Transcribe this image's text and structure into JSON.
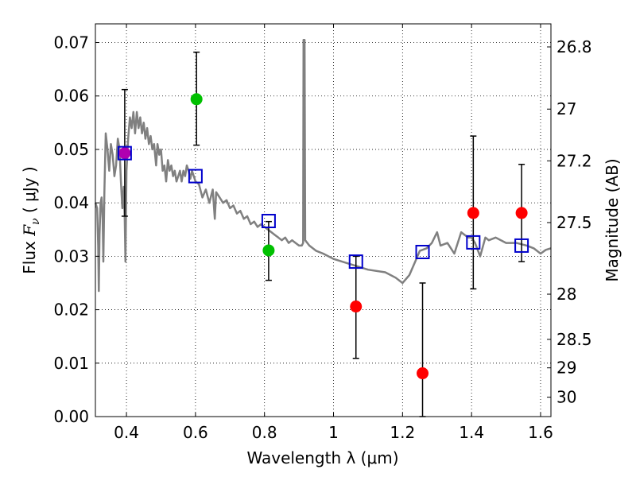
{
  "chart_data": {
    "type": "scatter",
    "xlabel": "Wavelength  λ (μm)",
    "ylabel_prefix": "Flux  ",
    "ylabel_symbol": "F",
    "ylabel_subscript": "ν",
    "ylabel_suffix": "  ( μJy )",
    "y2label": "Magnitude (AB)",
    "xlim": [
      0.31,
      1.63
    ],
    "ylim": [
      0.0,
      0.0735
    ],
    "grid": true,
    "x_ticks": [
      0.4,
      0.6,
      0.8,
      1.0,
      1.2,
      1.4,
      1.6
    ],
    "x_tick_labels": [
      "0.4",
      "0.6",
      "0.8",
      "1",
      "1.2",
      "1.4",
      "1.6"
    ],
    "y_ticks": [
      0.0,
      0.01,
      0.02,
      0.03,
      0.04,
      0.05,
      0.06,
      0.07
    ],
    "y_tick_labels": [
      "0.00",
      "0.01",
      "0.02",
      "0.03",
      "0.04",
      "0.05",
      "0.06",
      "0.07"
    ],
    "mag_ticks": [
      26.8,
      27.0,
      27.2,
      27.5,
      28.0,
      28.5,
      29.0,
      30.0
    ],
    "mag_tick_labels": [
      "26.8",
      "27",
      "27.2",
      "27.5",
      "28",
      "28.5",
      "29",
      "30"
    ],
    "model_spectrum": [
      [
        0.31,
        0.04
      ],
      [
        0.315,
        0.039
      ],
      [
        0.318,
        0.032
      ],
      [
        0.32,
        0.0235
      ],
      [
        0.322,
        0.034
      ],
      [
        0.325,
        0.04
      ],
      [
        0.328,
        0.041
      ],
      [
        0.331,
        0.037
      ],
      [
        0.333,
        0.029
      ],
      [
        0.336,
        0.042
      ],
      [
        0.34,
        0.053
      ],
      [
        0.345,
        0.05
      ],
      [
        0.35,
        0.046
      ],
      [
        0.355,
        0.051
      ],
      [
        0.36,
        0.049
      ],
      [
        0.365,
        0.045
      ],
      [
        0.37,
        0.047
      ],
      [
        0.375,
        0.052
      ],
      [
        0.38,
        0.05
      ],
      [
        0.384,
        0.044
      ],
      [
        0.388,
        0.039
      ],
      [
        0.392,
        0.043
      ],
      [
        0.395,
        0.037
      ],
      [
        0.397,
        0.029
      ],
      [
        0.4,
        0.046
      ],
      [
        0.405,
        0.052
      ],
      [
        0.41,
        0.056
      ],
      [
        0.415,
        0.054
      ],
      [
        0.42,
        0.057
      ],
      [
        0.425,
        0.053
      ],
      [
        0.43,
        0.057
      ],
      [
        0.435,
        0.054
      ],
      [
        0.44,
        0.056
      ],
      [
        0.445,
        0.053
      ],
      [
        0.45,
        0.055
      ],
      [
        0.455,
        0.052
      ],
      [
        0.46,
        0.054
      ],
      [
        0.465,
        0.051
      ],
      [
        0.47,
        0.0525
      ],
      [
        0.475,
        0.05
      ],
      [
        0.48,
        0.051
      ],
      [
        0.486,
        0.047
      ],
      [
        0.49,
        0.051
      ],
      [
        0.495,
        0.049
      ],
      [
        0.5,
        0.05
      ],
      [
        0.505,
        0.046
      ],
      [
        0.51,
        0.047
      ],
      [
        0.515,
        0.044
      ],
      [
        0.52,
        0.048
      ],
      [
        0.525,
        0.046
      ],
      [
        0.53,
        0.047
      ],
      [
        0.535,
        0.045
      ],
      [
        0.54,
        0.046
      ],
      [
        0.545,
        0.044
      ],
      [
        0.55,
        0.045
      ],
      [
        0.555,
        0.046
      ],
      [
        0.56,
        0.044
      ],
      [
        0.565,
        0.046
      ],
      [
        0.57,
        0.045
      ],
      [
        0.575,
        0.047
      ],
      [
        0.58,
        0.046
      ],
      [
        0.585,
        0.0445
      ],
      [
        0.59,
        0.046
      ],
      [
        0.6,
        0.044
      ],
      [
        0.61,
        0.0435
      ],
      [
        0.62,
        0.041
      ],
      [
        0.63,
        0.0425
      ],
      [
        0.64,
        0.04
      ],
      [
        0.65,
        0.0425
      ],
      [
        0.656,
        0.037
      ],
      [
        0.66,
        0.042
      ],
      [
        0.67,
        0.041
      ],
      [
        0.68,
        0.04
      ],
      [
        0.69,
        0.0405
      ],
      [
        0.7,
        0.039
      ],
      [
        0.71,
        0.0395
      ],
      [
        0.72,
        0.038
      ],
      [
        0.73,
        0.0385
      ],
      [
        0.74,
        0.037
      ],
      [
        0.75,
        0.0375
      ],
      [
        0.76,
        0.036
      ],
      [
        0.77,
        0.0365
      ],
      [
        0.78,
        0.0355
      ],
      [
        0.79,
        0.036
      ],
      [
        0.8,
        0.0355
      ],
      [
        0.81,
        0.035
      ],
      [
        0.82,
        0.0345
      ],
      [
        0.83,
        0.034
      ],
      [
        0.84,
        0.0335
      ],
      [
        0.85,
        0.033
      ],
      [
        0.86,
        0.0335
      ],
      [
        0.87,
        0.0325
      ],
      [
        0.88,
        0.033
      ],
      [
        0.89,
        0.0325
      ],
      [
        0.9,
        0.032
      ],
      [
        0.908,
        0.032
      ],
      [
        0.912,
        0.0325
      ],
      [
        0.913,
        0.0705
      ],
      [
        0.916,
        0.0705
      ],
      [
        0.918,
        0.033
      ],
      [
        0.93,
        0.032
      ],
      [
        0.95,
        0.031
      ],
      [
        0.97,
        0.0305
      ],
      [
        1.0,
        0.0295
      ],
      [
        1.05,
        0.0285
      ],
      [
        1.1,
        0.0275
      ],
      [
        1.15,
        0.027
      ],
      [
        1.18,
        0.026
      ],
      [
        1.2,
        0.025
      ],
      [
        1.22,
        0.0265
      ],
      [
        1.24,
        0.0295
      ],
      [
        1.25,
        0.031
      ],
      [
        1.27,
        0.0315
      ],
      [
        1.285,
        0.0325
      ],
      [
        1.3,
        0.0345
      ],
      [
        1.31,
        0.032
      ],
      [
        1.33,
        0.0325
      ],
      [
        1.35,
        0.0305
      ],
      [
        1.37,
        0.0345
      ],
      [
        1.39,
        0.0335
      ],
      [
        1.4,
        0.0335
      ],
      [
        1.41,
        0.0325
      ],
      [
        1.425,
        0.03
      ],
      [
        1.44,
        0.0335
      ],
      [
        1.45,
        0.033
      ],
      [
        1.47,
        0.0335
      ],
      [
        1.5,
        0.0325
      ],
      [
        1.53,
        0.0325
      ],
      [
        1.56,
        0.032
      ],
      [
        1.58,
        0.0315
      ],
      [
        1.6,
        0.0305
      ],
      [
        1.615,
        0.0312
      ],
      [
        1.63,
        0.0315
      ]
    ],
    "model_photometry": [
      {
        "x": 0.395,
        "y": 0.0493
      },
      {
        "x": 0.6,
        "y": 0.045
      },
      {
        "x": 0.812,
        "y": 0.0366
      },
      {
        "x": 1.065,
        "y": 0.029
      },
      {
        "x": 1.258,
        "y": 0.0308
      },
      {
        "x": 1.405,
        "y": 0.0326
      },
      {
        "x": 1.545,
        "y": 0.032
      }
    ],
    "observed": [
      {
        "x": 0.395,
        "y": 0.0493,
        "err_low": 0.0118,
        "err_high": 0.0119,
        "color": "#b000b0"
      },
      {
        "x": 0.603,
        "y": 0.0594,
        "err_low": 0.0086,
        "err_high": 0.0088,
        "color": "#00c000"
      },
      {
        "x": 0.812,
        "y": 0.0311,
        "err_low": 0.0056,
        "err_high": 0.0054,
        "color": "#00c000"
      },
      {
        "x": 1.065,
        "y": 0.0206,
        "err_low": 0.0097,
        "err_high": 0.0094,
        "color": "#ff0000"
      },
      {
        "x": 1.258,
        "y": 0.0081,
        "err_low": 0.0081,
        "err_high": 0.0169,
        "color": "#ff0000"
      },
      {
        "x": 1.405,
        "y": 0.0381,
        "err_low": 0.0142,
        "err_high": 0.0144,
        "color": "#ff0000"
      },
      {
        "x": 1.545,
        "y": 0.0381,
        "err_low": 0.0091,
        "err_high": 0.0091,
        "color": "#ff0000"
      }
    ],
    "colors": {
      "spectrum": "#808080",
      "model_marker": "#0000cc",
      "error_bar": "#000000",
      "grid": "#000000"
    }
  }
}
